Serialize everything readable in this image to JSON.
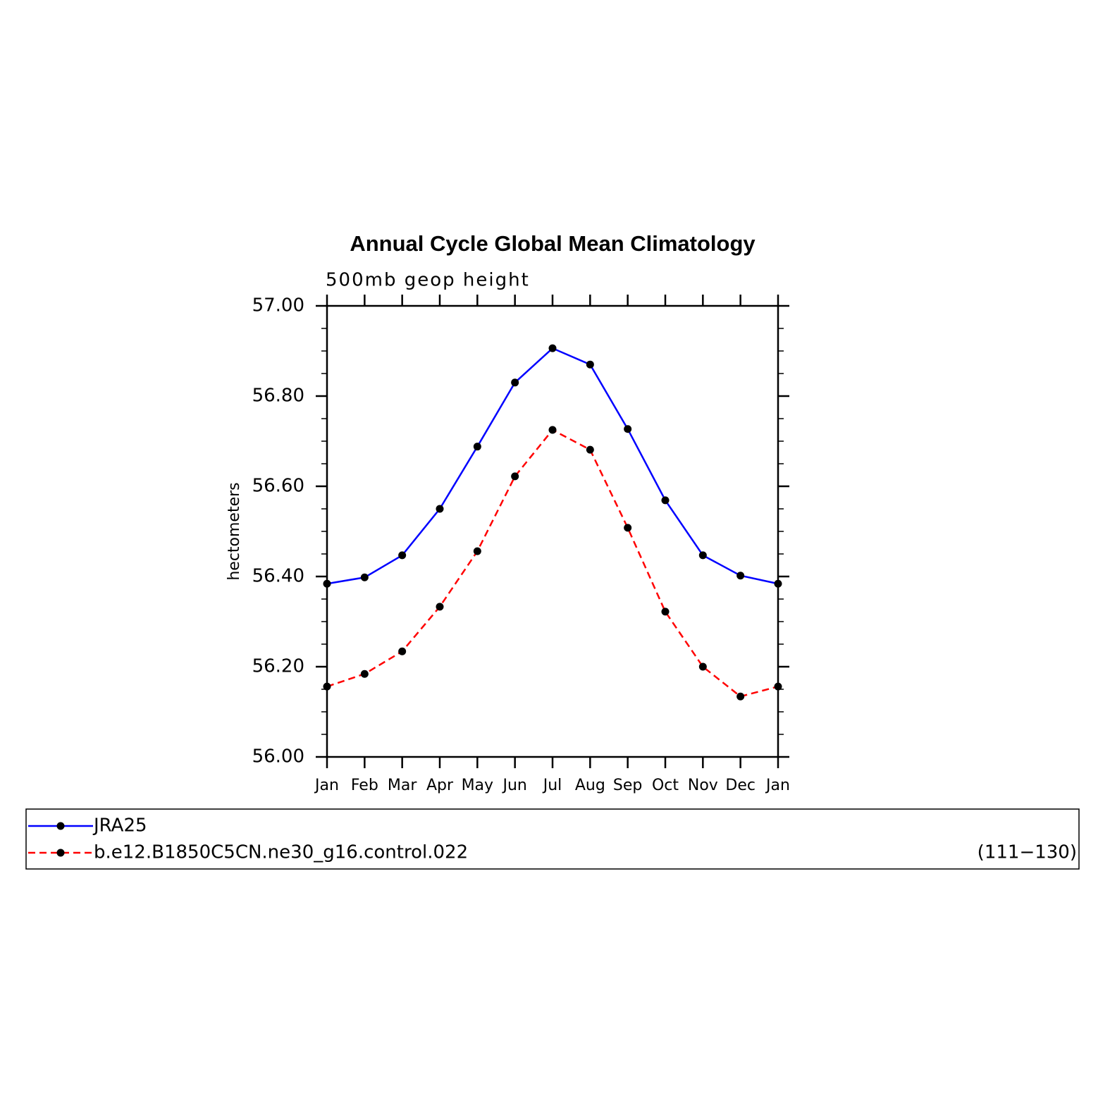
{
  "chart_data": {
    "type": "line",
    "title": "Annual Cycle Global Mean Climatology",
    "subtitle": "500mb geop height",
    "y_label": "hectometers",
    "categories": [
      "Jan",
      "Feb",
      "Mar",
      "Apr",
      "May",
      "Jun",
      "Jul",
      "Aug",
      "Sep",
      "Oct",
      "Nov",
      "Dec",
      "Jan"
    ],
    "ylim": [
      56,
      57
    ],
    "yticks": [
      {
        "value": 56,
        "label": "56.00"
      },
      {
        "value": 56.2,
        "label": "56.20"
      },
      {
        "value": 56.4,
        "label": "56.40"
      },
      {
        "value": 56.6,
        "label": "56.60"
      },
      {
        "value": 56.8,
        "label": "56.80"
      },
      {
        "value": 57,
        "label": "57.00"
      }
    ],
    "yminorticks": [
      56.05,
      56.1,
      56.15,
      56.25,
      56.3,
      56.35,
      56.45,
      56.5,
      56.55,
      56.65,
      56.7,
      56.75,
      56.85,
      56.9,
      56.95
    ],
    "series": [
      {
        "name": "JRA25",
        "color": "#0000ff",
        "dash": false,
        "values": [
          56.384,
          56.398,
          56.447,
          56.55,
          56.688,
          56.83,
          56.906,
          56.87,
          56.727,
          56.569,
          56.447,
          56.402,
          56.384
        ]
      },
      {
        "name": "b.e12.B1850C5CN.ne30_g16.control.022",
        "color": "#ff0000",
        "dash": true,
        "years": "(111−130)",
        "values": [
          56.156,
          56.184,
          56.234,
          56.333,
          56.456,
          56.622,
          56.725,
          56.681,
          56.508,
          56.322,
          56.2,
          56.134,
          56.156
        ]
      }
    ]
  }
}
